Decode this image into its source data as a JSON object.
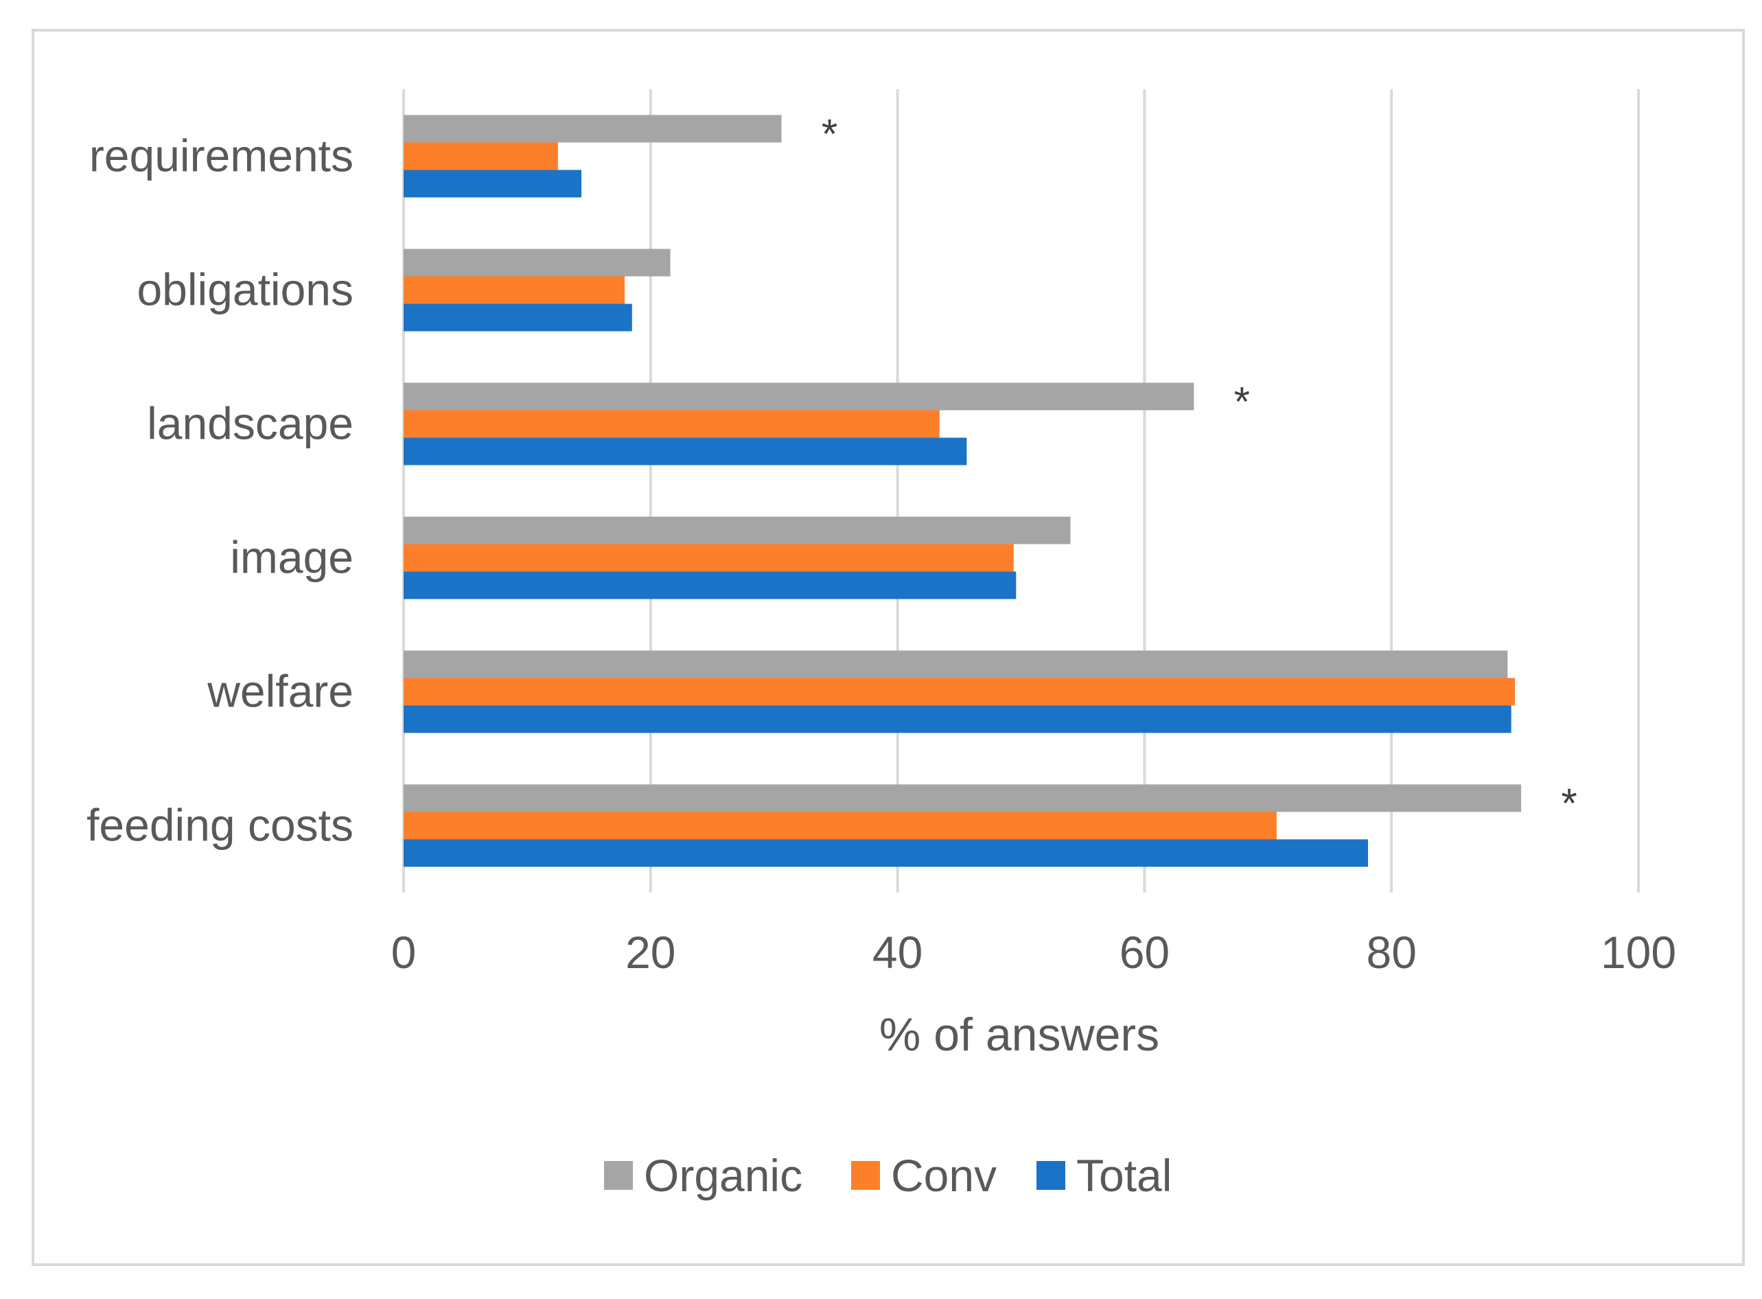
{
  "chart_data": {
    "type": "bar",
    "orientation": "horizontal",
    "categories": [
      "requirements",
      "obligations",
      "landscape",
      "image",
      "welfare",
      "feeding costs"
    ],
    "series": [
      {
        "name": "Organic",
        "color": "#a5a5a5",
        "values": [
          30.6,
          21.6,
          64.0,
          54.0,
          89.4,
          90.5
        ]
      },
      {
        "name": "Conv",
        "color": "#fe7f2a",
        "values": [
          12.5,
          17.9,
          43.4,
          49.4,
          90.0,
          70.7
        ]
      },
      {
        "name": "Total",
        "color": "#1b73c8",
        "values": [
          14.4,
          18.5,
          45.6,
          49.6,
          89.7,
          78.1
        ]
      }
    ],
    "annotations": [
      {
        "category": "requirements",
        "text": "*"
      },
      {
        "category": "landscape",
        "text": "*"
      },
      {
        "category": "feeding costs",
        "text": "*"
      }
    ],
    "xlabel": "% of answers",
    "ylabel": "",
    "title": "",
    "xlim": [
      0,
      100
    ],
    "xticks": [
      0,
      20,
      40,
      60,
      80,
      100
    ],
    "grid": "vertical",
    "legend_position": "bottom"
  }
}
